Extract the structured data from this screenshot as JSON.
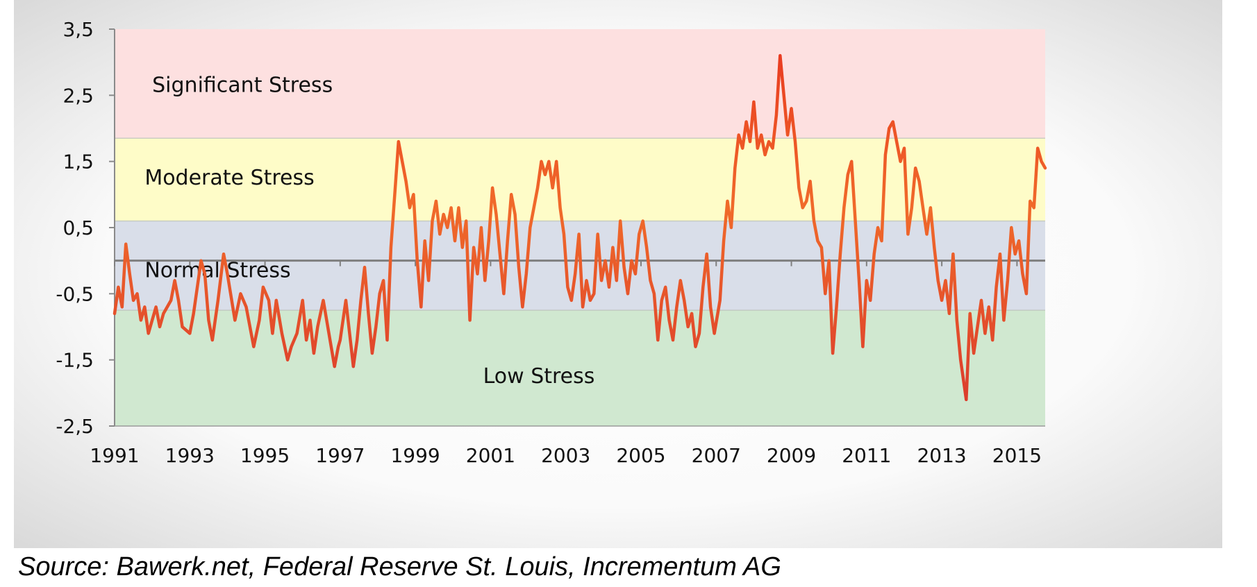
{
  "chart_data": {
    "type": "line",
    "title": "",
    "xlabel": "",
    "ylabel": "",
    "xlim": [
      1991.0,
      2015.75
    ],
    "ylim": [
      -2.5,
      3.5
    ],
    "x_ticks": [
      "1991",
      "1993",
      "1995",
      "1997",
      "1999",
      "2001",
      "2003",
      "2005",
      "2007",
      "2009",
      "2011",
      "2013",
      "2015"
    ],
    "x_tick_values": [
      1991,
      1993,
      1995,
      1997,
      1999,
      2001,
      2003,
      2005,
      2007,
      2009,
      2011,
      2013,
      2015
    ],
    "y_ticks": [
      "3,5",
      "2,5",
      "1,5",
      "0,5",
      "-0,5",
      "-1,5",
      "-2,5"
    ],
    "y_tick_values": [
      3.5,
      2.5,
      1.5,
      0.5,
      -0.5,
      -1.5,
      -2.5
    ],
    "grid": false,
    "zero_line": true,
    "legend": "none",
    "bands": [
      {
        "label": "Significant Stress",
        "from": 1.85,
        "to": 3.5,
        "color": "#fde0e0",
        "label_x": 1992.0,
        "label_y": 2.55
      },
      {
        "label": "Moderate Stress",
        "from": 0.6,
        "to": 1.85,
        "color": "#fefcc8",
        "label_x": 1991.8,
        "label_y": 1.15
      },
      {
        "label": "Normal Stress",
        "from": -0.75,
        "to": 0.6,
        "color": "#d9dee9",
        "label_x": 1991.8,
        "label_y": -0.25
      },
      {
        "label": "Low Stress",
        "from": -2.5,
        "to": -0.75,
        "color": "#d0e8d0",
        "label_x": 2000.8,
        "label_y": -1.85
      }
    ],
    "series": [
      {
        "color": "#e03c2a",
        "points": [
          [
            1991.0,
            -0.8
          ],
          [
            1991.1,
            -0.4
          ],
          [
            1991.2,
            -0.7
          ],
          [
            1991.3,
            0.25
          ],
          [
            1991.4,
            -0.2
          ],
          [
            1991.5,
            -0.6
          ],
          [
            1991.6,
            -0.5
          ],
          [
            1991.7,
            -0.9
          ],
          [
            1991.8,
            -0.7
          ],
          [
            1991.9,
            -1.1
          ],
          [
            1992.0,
            -0.9
          ],
          [
            1992.1,
            -0.7
          ],
          [
            1992.2,
            -1.0
          ],
          [
            1992.3,
            -0.8
          ],
          [
            1992.5,
            -0.6
          ],
          [
            1992.6,
            -0.3
          ],
          [
            1992.7,
            -0.6
          ],
          [
            1992.8,
            -1.0
          ],
          [
            1993.0,
            -1.1
          ],
          [
            1993.1,
            -0.8
          ],
          [
            1993.3,
            0.0
          ],
          [
            1993.4,
            -0.2
          ],
          [
            1993.5,
            -0.9
          ],
          [
            1993.6,
            -1.2
          ],
          [
            1993.75,
            -0.6
          ],
          [
            1993.9,
            0.1
          ],
          [
            1994.0,
            -0.2
          ],
          [
            1994.2,
            -0.9
          ],
          [
            1994.35,
            -0.5
          ],
          [
            1994.5,
            -0.7
          ],
          [
            1994.6,
            -1.0
          ],
          [
            1994.7,
            -1.3
          ],
          [
            1994.85,
            -0.9
          ],
          [
            1994.95,
            -0.4
          ],
          [
            1995.1,
            -0.6
          ],
          [
            1995.2,
            -1.1
          ],
          [
            1995.3,
            -0.6
          ],
          [
            1995.45,
            -1.1
          ],
          [
            1995.6,
            -1.5
          ],
          [
            1995.7,
            -1.3
          ],
          [
            1995.85,
            -1.1
          ],
          [
            1996.0,
            -0.6
          ],
          [
            1996.1,
            -1.2
          ],
          [
            1996.2,
            -0.9
          ],
          [
            1996.3,
            -1.4
          ],
          [
            1996.4,
            -1.0
          ],
          [
            1996.55,
            -0.6
          ],
          [
            1996.7,
            -1.1
          ],
          [
            1996.85,
            -1.6
          ],
          [
            1996.95,
            -1.3
          ],
          [
            1997.0,
            -1.2
          ],
          [
            1997.15,
            -0.6
          ],
          [
            1997.25,
            -1.1
          ],
          [
            1997.35,
            -1.6
          ],
          [
            1997.45,
            -1.2
          ],
          [
            1997.55,
            -0.6
          ],
          [
            1997.65,
            -0.1
          ],
          [
            1997.75,
            -0.8
          ],
          [
            1997.85,
            -1.4
          ],
          [
            1997.95,
            -1.0
          ],
          [
            1998.05,
            -0.5
          ],
          [
            1998.15,
            -0.3
          ],
          [
            1998.25,
            -1.2
          ],
          [
            1998.35,
            0.2
          ],
          [
            1998.45,
            1.0
          ],
          [
            1998.55,
            1.8
          ],
          [
            1998.65,
            1.5
          ],
          [
            1998.75,
            1.2
          ],
          [
            1998.85,
            0.8
          ],
          [
            1998.95,
            1.0
          ],
          [
            1999.05,
            0.0
          ],
          [
            1999.15,
            -0.7
          ],
          [
            1999.25,
            0.3
          ],
          [
            1999.35,
            -0.3
          ],
          [
            1999.45,
            0.6
          ],
          [
            1999.55,
            0.9
          ],
          [
            1999.65,
            0.4
          ],
          [
            1999.75,
            0.7
          ],
          [
            1999.85,
            0.5
          ],
          [
            1999.95,
            0.8
          ],
          [
            2000.05,
            0.3
          ],
          [
            2000.15,
            0.8
          ],
          [
            2000.25,
            0.2
          ],
          [
            2000.35,
            0.6
          ],
          [
            2000.45,
            -0.9
          ],
          [
            2000.55,
            0.2
          ],
          [
            2000.65,
            -0.2
          ],
          [
            2000.75,
            0.5
          ],
          [
            2000.85,
            -0.3
          ],
          [
            2000.95,
            0.3
          ],
          [
            2001.05,
            1.1
          ],
          [
            2001.15,
            0.7
          ],
          [
            2001.25,
            0.1
          ],
          [
            2001.35,
            -0.5
          ],
          [
            2001.45,
            0.3
          ],
          [
            2001.55,
            1.0
          ],
          [
            2001.65,
            0.7
          ],
          [
            2001.75,
            -0.1
          ],
          [
            2001.85,
            -0.7
          ],
          [
            2001.95,
            -0.2
          ],
          [
            2002.05,
            0.5
          ],
          [
            2002.15,
            0.8
          ],
          [
            2002.25,
            1.1
          ],
          [
            2002.35,
            1.5
          ],
          [
            2002.45,
            1.3
          ],
          [
            2002.55,
            1.5
          ],
          [
            2002.65,
            1.1
          ],
          [
            2002.75,
            1.5
          ],
          [
            2002.85,
            0.8
          ],
          [
            2002.95,
            0.4
          ],
          [
            2003.05,
            -0.4
          ],
          [
            2003.15,
            -0.6
          ],
          [
            2003.25,
            -0.2
          ],
          [
            2003.35,
            0.4
          ],
          [
            2003.45,
            -0.7
          ],
          [
            2003.55,
            -0.3
          ],
          [
            2003.65,
            -0.6
          ],
          [
            2003.75,
            -0.5
          ],
          [
            2003.85,
            0.4
          ],
          [
            2003.95,
            -0.3
          ],
          [
            2004.05,
            0.0
          ],
          [
            2004.15,
            -0.4
          ],
          [
            2004.25,
            0.2
          ],
          [
            2004.35,
            -0.3
          ],
          [
            2004.45,
            0.6
          ],
          [
            2004.55,
            -0.1
          ],
          [
            2004.65,
            -0.5
          ],
          [
            2004.75,
            0.0
          ],
          [
            2004.85,
            -0.2
          ],
          [
            2004.95,
            0.4
          ],
          [
            2005.05,
            0.6
          ],
          [
            2005.15,
            0.2
          ],
          [
            2005.25,
            -0.3
          ],
          [
            2005.35,
            -0.5
          ],
          [
            2005.45,
            -1.2
          ],
          [
            2005.55,
            -0.6
          ],
          [
            2005.65,
            -0.4
          ],
          [
            2005.75,
            -0.9
          ],
          [
            2005.85,
            -1.2
          ],
          [
            2005.95,
            -0.7
          ],
          [
            2006.05,
            -0.3
          ],
          [
            2006.15,
            -0.6
          ],
          [
            2006.25,
            -1.0
          ],
          [
            2006.35,
            -0.8
          ],
          [
            2006.45,
            -1.3
          ],
          [
            2006.55,
            -1.1
          ],
          [
            2006.65,
            -0.4
          ],
          [
            2006.75,
            0.1
          ],
          [
            2006.85,
            -0.7
          ],
          [
            2006.95,
            -1.1
          ],
          [
            2007.1,
            -0.6
          ],
          [
            2007.2,
            0.3
          ],
          [
            2007.3,
            0.9
          ],
          [
            2007.4,
            0.5
          ],
          [
            2007.5,
            1.4
          ],
          [
            2007.6,
            1.9
          ],
          [
            2007.7,
            1.7
          ],
          [
            2007.8,
            2.1
          ],
          [
            2007.9,
            1.8
          ],
          [
            2008.0,
            2.4
          ],
          [
            2008.1,
            1.7
          ],
          [
            2008.2,
            1.9
          ],
          [
            2008.3,
            1.6
          ],
          [
            2008.4,
            1.8
          ],
          [
            2008.5,
            1.7
          ],
          [
            2008.6,
            2.2
          ],
          [
            2008.7,
            3.1
          ],
          [
            2008.8,
            2.5
          ],
          [
            2008.9,
            1.9
          ],
          [
            2009.0,
            2.3
          ],
          [
            2009.1,
            1.8
          ],
          [
            2009.2,
            1.1
          ],
          [
            2009.3,
            0.8
          ],
          [
            2009.4,
            0.9
          ],
          [
            2009.5,
            1.2
          ],
          [
            2009.6,
            0.6
          ],
          [
            2009.7,
            0.3
          ],
          [
            2009.8,
            0.2
          ],
          [
            2009.9,
            -0.5
          ],
          [
            2010.0,
            0.0
          ],
          [
            2010.1,
            -1.4
          ],
          [
            2010.2,
            -0.7
          ],
          [
            2010.3,
            0.1
          ],
          [
            2010.4,
            0.8
          ],
          [
            2010.5,
            1.3
          ],
          [
            2010.6,
            1.5
          ],
          [
            2010.7,
            0.6
          ],
          [
            2010.8,
            -0.3
          ],
          [
            2010.9,
            -1.3
          ],
          [
            2011.0,
            -0.3
          ],
          [
            2011.1,
            -0.6
          ],
          [
            2011.2,
            0.1
          ],
          [
            2011.3,
            0.5
          ],
          [
            2011.4,
            0.3
          ],
          [
            2011.5,
            1.6
          ],
          [
            2011.6,
            2.0
          ],
          [
            2011.7,
            2.1
          ],
          [
            2011.8,
            1.8
          ],
          [
            2011.9,
            1.5
          ],
          [
            2012.0,
            1.7
          ],
          [
            2012.1,
            0.4
          ],
          [
            2012.2,
            0.8
          ],
          [
            2012.3,
            1.4
          ],
          [
            2012.4,
            1.2
          ],
          [
            2012.5,
            0.8
          ],
          [
            2012.6,
            0.4
          ],
          [
            2012.7,
            0.8
          ],
          [
            2012.8,
            0.2
          ],
          [
            2012.9,
            -0.3
          ],
          [
            2013.0,
            -0.6
          ],
          [
            2013.1,
            -0.3
          ],
          [
            2013.2,
            -0.8
          ],
          [
            2013.3,
            0.1
          ],
          [
            2013.4,
            -0.9
          ],
          [
            2013.5,
            -1.5
          ],
          [
            2013.6,
            -1.9
          ],
          [
            2013.65,
            -2.1
          ],
          [
            2013.75,
            -0.8
          ],
          [
            2013.85,
            -1.4
          ],
          [
            2013.95,
            -1.0
          ],
          [
            2014.05,
            -0.6
          ],
          [
            2014.15,
            -1.1
          ],
          [
            2014.25,
            -0.7
          ],
          [
            2014.35,
            -1.2
          ],
          [
            2014.45,
            -0.4
          ],
          [
            2014.55,
            0.1
          ],
          [
            2014.65,
            -0.9
          ],
          [
            2014.75,
            -0.3
          ],
          [
            2014.85,
            0.5
          ],
          [
            2014.95,
            0.1
          ],
          [
            2015.05,
            0.3
          ],
          [
            2015.15,
            -0.2
          ],
          [
            2015.25,
            -0.5
          ],
          [
            2015.35,
            0.9
          ],
          [
            2015.45,
            0.8
          ],
          [
            2015.55,
            1.7
          ],
          [
            2015.65,
            1.5
          ],
          [
            2015.75,
            1.4
          ]
        ]
      }
    ]
  },
  "source_note": "Source: Bawerk.net, Federal Reserve St. Louis, Incrementum AG"
}
